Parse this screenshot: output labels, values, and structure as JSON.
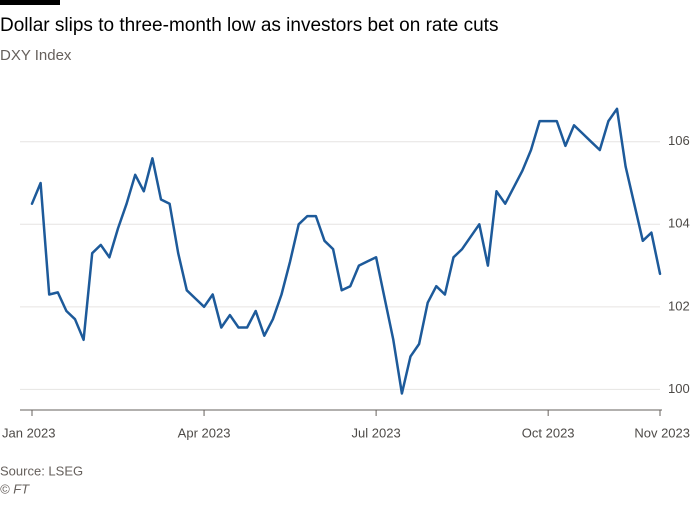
{
  "chart_data": {
    "type": "line",
    "title": "Dollar slips to three-month low as investors bet on rate cuts",
    "subtitle": "DXY Index",
    "source": "Source: LSEG",
    "credit": "© FT",
    "color": "#1d5a9a",
    "categories": [
      "Jan 2023",
      null,
      null,
      null,
      null,
      null,
      null,
      null,
      null,
      null,
      null,
      null,
      null,
      null,
      null,
      null,
      null,
      null,
      null,
      null,
      "Apr 2023",
      null,
      null,
      null,
      null,
      null,
      null,
      null,
      null,
      null,
      null,
      null,
      null,
      null,
      null,
      null,
      null,
      null,
      null,
      null,
      "Jul 2023",
      null,
      null,
      null,
      null,
      null,
      null,
      null,
      null,
      null,
      null,
      null,
      null,
      null,
      null,
      null,
      null,
      null,
      null,
      null,
      "Oct 2023",
      null,
      null,
      null,
      null,
      null,
      null,
      null,
      null,
      null,
      null,
      null,
      null,
      "Nov 2023"
    ],
    "values": [
      104.5,
      105.0,
      102.3,
      102.35,
      101.9,
      101.7,
      101.2,
      103.3,
      103.5,
      103.2,
      103.9,
      104.5,
      105.2,
      104.8,
      105.6,
      104.6,
      104.5,
      103.3,
      102.4,
      102.2,
      102.0,
      102.3,
      101.5,
      101.8,
      101.5,
      101.5,
      101.9,
      101.3,
      101.7,
      102.3,
      103.1,
      104.0,
      104.2,
      104.2,
      103.6,
      103.4,
      102.4,
      102.5,
      103.0,
      103.1,
      103.2,
      102.2,
      101.2,
      99.9,
      100.8,
      101.1,
      102.1,
      102.5,
      102.3,
      103.2,
      103.4,
      103.7,
      104.0,
      103.0,
      104.8,
      104.5,
      104.9,
      105.3,
      105.8,
      106.5,
      106.5,
      106.5,
      105.9,
      106.4,
      106.2,
      106.0,
      105.8,
      106.5,
      106.8,
      105.4,
      104.5,
      103.6,
      103.8,
      102.8
    ],
    "ylim": [
      99.5,
      107.4
    ],
    "yticks": [
      100,
      102,
      104,
      106
    ],
    "grid": true
  }
}
